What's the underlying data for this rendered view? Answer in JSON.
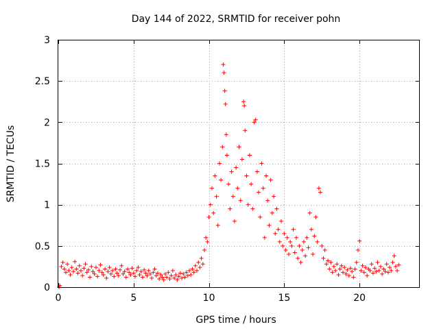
{
  "chart_data": {
    "type": "scatter",
    "title": "Day 144 of 2022, SRMTID for receiver pohn",
    "xlabel": "GPS time / hours",
    "ylabel": "SRMTID / TECUs",
    "xlim": [
      0,
      24
    ],
    "ylim": [
      0,
      3
    ],
    "xticks": [
      0,
      5,
      10,
      15,
      20
    ],
    "xtick_labels": [
      "0",
      "5",
      "10",
      "15",
      "20"
    ],
    "yticks": [
      0,
      0.5,
      1,
      1.5,
      2,
      2.5,
      3
    ],
    "ytick_labels": [
      "0",
      "0.5",
      "1",
      "1.5",
      "2",
      "2.5",
      "3"
    ],
    "grid": true,
    "marker": "+",
    "color": "#ff0000",
    "series": [
      {
        "name": "SRMTID",
        "points": [
          [
            0.05,
            0.0
          ],
          [
            0.1,
            0.02
          ],
          [
            0.2,
            0.25
          ],
          [
            0.3,
            0.3
          ],
          [
            0.4,
            0.22
          ],
          [
            0.5,
            0.18
          ],
          [
            0.6,
            0.28
          ],
          [
            0.7,
            0.2
          ],
          [
            0.8,
            0.15
          ],
          [
            0.9,
            0.24
          ],
          [
            1.0,
            0.19
          ],
          [
            1.1,
            0.31
          ],
          [
            1.2,
            0.22
          ],
          [
            1.3,
            0.17
          ],
          [
            1.4,
            0.26
          ],
          [
            1.5,
            0.2
          ],
          [
            1.6,
            0.14
          ],
          [
            1.7,
            0.23
          ],
          [
            1.8,
            0.28
          ],
          [
            1.9,
            0.18
          ],
          [
            2.0,
            0.21
          ],
          [
            2.1,
            0.12
          ],
          [
            2.2,
            0.25
          ],
          [
            2.3,
            0.19
          ],
          [
            2.4,
            0.16
          ],
          [
            2.5,
            0.24
          ],
          [
            2.6,
            0.13
          ],
          [
            2.7,
            0.2
          ],
          [
            2.8,
            0.27
          ],
          [
            2.9,
            0.18
          ],
          [
            3.0,
            0.15
          ],
          [
            3.1,
            0.22
          ],
          [
            3.2,
            0.11
          ],
          [
            3.3,
            0.19
          ],
          [
            3.4,
            0.24
          ],
          [
            3.5,
            0.16
          ],
          [
            3.6,
            0.2
          ],
          [
            3.7,
            0.13
          ],
          [
            3.8,
            0.22
          ],
          [
            3.9,
            0.17
          ],
          [
            4.0,
            0.14
          ],
          [
            4.1,
            0.21
          ],
          [
            4.2,
            0.26
          ],
          [
            4.3,
            0.16
          ],
          [
            4.4,
            0.19
          ],
          [
            4.5,
            0.12
          ],
          [
            4.6,
            0.22
          ],
          [
            4.7,
            0.18
          ],
          [
            4.8,
            0.15
          ],
          [
            4.9,
            0.23
          ],
          [
            5.0,
            0.17
          ],
          [
            5.1,
            0.13
          ],
          [
            5.2,
            0.2
          ],
          [
            5.3,
            0.24
          ],
          [
            5.4,
            0.15
          ],
          [
            5.5,
            0.19
          ],
          [
            5.6,
            0.12
          ],
          [
            5.7,
            0.21
          ],
          [
            5.8,
            0.17
          ],
          [
            5.9,
            0.14
          ],
          [
            6.0,
            0.2
          ],
          [
            6.1,
            0.16
          ],
          [
            6.2,
            0.11
          ],
          [
            6.3,
            0.18
          ],
          [
            6.4,
            0.22
          ],
          [
            6.5,
            0.14
          ],
          [
            6.6,
            0.17
          ],
          [
            6.7,
            0.1
          ],
          [
            6.8,
            0.15
          ],
          [
            6.9,
            0.12
          ],
          [
            7.0,
            0.09
          ],
          [
            7.1,
            0.16
          ],
          [
            7.2,
            0.12
          ],
          [
            7.3,
            0.18
          ],
          [
            7.4,
            0.1
          ],
          [
            7.5,
            0.14
          ],
          [
            7.6,
            0.2
          ],
          [
            7.7,
            0.11
          ],
          [
            7.8,
            0.15
          ],
          [
            7.9,
            0.09
          ],
          [
            8.0,
            0.13
          ],
          [
            8.1,
            0.17
          ],
          [
            8.2,
            0.11
          ],
          [
            8.3,
            0.16
          ],
          [
            8.4,
            0.12
          ],
          [
            8.5,
            0.18
          ],
          [
            8.6,
            0.14
          ],
          [
            8.7,
            0.2
          ],
          [
            8.8,
            0.15
          ],
          [
            8.9,
            0.22
          ],
          [
            9.0,
            0.18
          ],
          [
            9.1,
            0.26
          ],
          [
            9.2,
            0.2
          ],
          [
            9.3,
            0.3
          ],
          [
            9.4,
            0.24
          ],
          [
            9.5,
            0.35
          ],
          [
            9.6,
            0.28
          ],
          [
            9.7,
            0.45
          ],
          [
            9.8,
            0.6
          ],
          [
            9.9,
            0.55
          ],
          [
            10.0,
            0.85
          ],
          [
            10.1,
            1.0
          ],
          [
            10.2,
            1.2
          ],
          [
            10.3,
            0.9
          ],
          [
            10.4,
            1.35
          ],
          [
            10.5,
            1.1
          ],
          [
            10.6,
            0.75
          ],
          [
            10.7,
            1.5
          ],
          [
            10.8,
            1.3
          ],
          [
            10.9,
            1.7
          ],
          [
            10.95,
            2.7
          ],
          [
            11.0,
            2.6
          ],
          [
            11.05,
            2.38
          ],
          [
            11.1,
            2.22
          ],
          [
            11.15,
            1.85
          ],
          [
            11.2,
            1.6
          ],
          [
            11.3,
            1.25
          ],
          [
            11.4,
            0.95
          ],
          [
            11.5,
            1.4
          ],
          [
            11.6,
            1.1
          ],
          [
            11.7,
            0.8
          ],
          [
            11.8,
            1.45
          ],
          [
            11.9,
            1.2
          ],
          [
            12.0,
            1.7
          ],
          [
            12.1,
            1.05
          ],
          [
            12.2,
            1.55
          ],
          [
            12.3,
            2.25
          ],
          [
            12.35,
            2.2
          ],
          [
            12.4,
            1.9
          ],
          [
            12.5,
            1.35
          ],
          [
            12.6,
            1.0
          ],
          [
            12.7,
            1.6
          ],
          [
            12.8,
            1.25
          ],
          [
            12.9,
            0.95
          ],
          [
            13.0,
            2.0
          ],
          [
            13.1,
            2.03
          ],
          [
            13.2,
            1.4
          ],
          [
            13.3,
            1.15
          ],
          [
            13.4,
            0.85
          ],
          [
            13.5,
            1.5
          ],
          [
            13.6,
            1.2
          ],
          [
            13.7,
            0.6
          ],
          [
            13.8,
            1.35
          ],
          [
            13.9,
            1.05
          ],
          [
            14.0,
            0.75
          ],
          [
            14.1,
            1.3
          ],
          [
            14.2,
            0.9
          ],
          [
            14.3,
            1.1
          ],
          [
            14.4,
            0.65
          ],
          [
            14.5,
            0.95
          ],
          [
            14.6,
            0.7
          ],
          [
            14.7,
            0.55
          ],
          [
            14.8,
            0.8
          ],
          [
            14.9,
            0.5
          ],
          [
            15.0,
            0.65
          ],
          [
            15.1,
            0.45
          ],
          [
            15.2,
            0.6
          ],
          [
            15.3,
            0.4
          ],
          [
            15.4,
            0.55
          ],
          [
            15.5,
            0.5
          ],
          [
            15.6,
            0.7
          ],
          [
            15.7,
            0.42
          ],
          [
            15.8,
            0.6
          ],
          [
            15.9,
            0.35
          ],
          [
            16.0,
            0.5
          ],
          [
            16.1,
            0.3
          ],
          [
            16.2,
            0.45
          ],
          [
            16.3,
            0.55
          ],
          [
            16.4,
            0.38
          ],
          [
            16.5,
            0.6
          ],
          [
            16.6,
            0.48
          ],
          [
            16.7,
            0.9
          ],
          [
            16.8,
            0.7
          ],
          [
            16.9,
            0.4
          ],
          [
            17.0,
            0.62
          ],
          [
            17.1,
            0.85
          ],
          [
            17.2,
            0.55
          ],
          [
            17.3,
            1.2
          ],
          [
            17.4,
            1.15
          ],
          [
            17.5,
            0.5
          ],
          [
            17.6,
            0.35
          ],
          [
            17.7,
            0.45
          ],
          [
            17.8,
            0.28
          ],
          [
            17.9,
            0.32
          ],
          [
            18.0,
            0.22
          ],
          [
            18.1,
            0.3
          ],
          [
            18.2,
            0.18
          ],
          [
            18.3,
            0.25
          ],
          [
            18.4,
            0.2
          ],
          [
            18.5,
            0.28
          ],
          [
            18.6,
            0.15
          ],
          [
            18.7,
            0.22
          ],
          [
            18.8,
            0.26
          ],
          [
            18.9,
            0.18
          ],
          [
            19.0,
            0.24
          ],
          [
            19.1,
            0.16
          ],
          [
            19.2,
            0.21
          ],
          [
            19.3,
            0.14
          ],
          [
            19.4,
            0.23
          ],
          [
            19.5,
            0.19
          ],
          [
            19.6,
            0.12
          ],
          [
            19.7,
            0.22
          ],
          [
            19.8,
            0.3
          ],
          [
            19.9,
            0.45
          ],
          [
            20.0,
            0.56
          ],
          [
            20.1,
            0.2
          ],
          [
            20.2,
            0.26
          ],
          [
            20.3,
            0.18
          ],
          [
            20.4,
            0.24
          ],
          [
            20.5,
            0.14
          ],
          [
            20.6,
            0.22
          ],
          [
            20.7,
            0.2
          ],
          [
            20.8,
            0.28
          ],
          [
            20.9,
            0.17
          ],
          [
            21.0,
            0.23
          ],
          [
            21.1,
            0.19
          ],
          [
            21.2,
            0.3
          ],
          [
            21.3,
            0.2
          ],
          [
            21.4,
            0.25
          ],
          [
            21.5,
            0.16
          ],
          [
            21.6,
            0.22
          ],
          [
            21.7,
            0.19
          ],
          [
            21.8,
            0.28
          ],
          [
            21.9,
            0.18
          ],
          [
            22.0,
            0.24
          ],
          [
            22.1,
            0.2
          ],
          [
            22.2,
            0.3
          ],
          [
            22.3,
            0.38
          ],
          [
            22.4,
            0.25
          ],
          [
            22.5,
            0.2
          ],
          [
            22.6,
            0.27
          ]
        ]
      }
    ]
  }
}
